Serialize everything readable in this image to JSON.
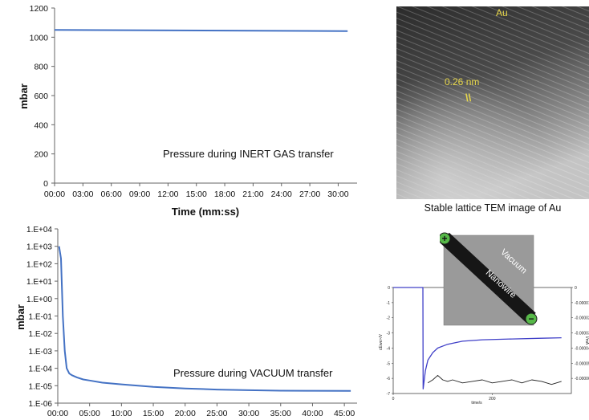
{
  "chart_data": [
    {
      "type": "line",
      "annotation": "Pressure during INERT GAS transfer",
      "xlabel": "Time (mm:ss)",
      "ylabel": "mbar",
      "x_tick_labels": [
        "00:00",
        "03:00",
        "06:00",
        "09:00",
        "12:00",
        "15:00",
        "18:00",
        "21:00",
        "24:00",
        "27:00",
        "30:00"
      ],
      "y_tick_labels": [
        "0",
        "200",
        "400",
        "600",
        "800",
        "1000",
        "1200"
      ],
      "ylim": [
        0,
        1200
      ],
      "xlim_minutes": [
        0,
        32
      ],
      "grid": false,
      "series": [
        {
          "color": "#4472c4",
          "x": [
            0,
            31
          ],
          "y": [
            1050,
            1042
          ]
        }
      ]
    },
    {
      "type": "line",
      "annotation": "Pressure during VACUUM transfer",
      "xlabel": "",
      "ylabel": "mbar",
      "log_scale_y": true,
      "x_tick_labels": [
        "00:00",
        "05:00",
        "10:00",
        "15:00",
        "20:00",
        "25:00",
        "30:00",
        "35:00",
        "40:00",
        "45:00"
      ],
      "y_tick_labels": [
        "1.E-06",
        "1.E-05",
        "1.E-04",
        "1.E-03",
        "1.E-02",
        "1.E-01",
        "1.E+00",
        "1.E+01",
        "1.E+02",
        "1.E+03",
        "1.E+04"
      ],
      "ylim": [
        1e-06,
        10000
      ],
      "xlim_minutes": [
        0,
        47
      ],
      "grid": false,
      "series": [
        {
          "color": "#4472c4",
          "x": [
            0.2,
            0.5,
            0.8,
            1.1,
            1.4,
            1.8,
            2.2,
            3,
            4,
            5,
            7,
            10,
            15,
            20,
            25,
            30,
            35,
            40,
            46
          ],
          "y": [
            1000,
            200,
            0.1,
            0.001,
            0.0001,
            5e-05,
            4e-05,
            3e-05,
            2.3e-05,
            2e-05,
            1.5e-05,
            1.2e-05,
            8.5e-06,
            7e-06,
            6e-06,
            5.5e-06,
            5.2e-06,
            5.1e-06,
            5e-06
          ]
        }
      ]
    },
    {
      "type": "line",
      "xlabel": "time/s",
      "ylabel": "cEwe>/V",
      "ylabel_right": "I/mA",
      "x_tick_labels": [
        "0",
        "200"
      ],
      "y_tick_labels": [
        "0",
        "-1",
        "-2",
        "-3",
        "-4",
        "-5",
        "-6",
        "-7"
      ],
      "y2_tick_labels": [
        "0",
        "-0.00001",
        "-0.00002",
        "-0.00003",
        "-0.00004",
        "-0.00005",
        "-0.00006"
      ],
      "xlim": [
        0,
        360
      ],
      "ylim": [
        -7,
        0
      ],
      "y2lim": [
        -7e-05,
        0
      ],
      "grid": false,
      "series": [
        {
          "axis": "left",
          "color": "#4040c8",
          "x": [
            0,
            60,
            60.5,
            65,
            70,
            80,
            90,
            110,
            140,
            180,
            240,
            300,
            340
          ],
          "y": [
            0,
            0,
            -6.7,
            -5.5,
            -4.8,
            -4.3,
            -4.0,
            -3.75,
            -3.55,
            -3.45,
            -3.4,
            -3.35,
            -3.32
          ]
        },
        {
          "axis": "right",
          "color": "#222222",
          "x": [
            70,
            80,
            90,
            100,
            110,
            120,
            140,
            160,
            180,
            200,
            220,
            240,
            260,
            280,
            300,
            320,
            340
          ],
          "y": [
            -6.3e-05,
            -6.1e-05,
            -5.8e-05,
            -6.1e-05,
            -6.2e-05,
            -6.1e-05,
            -6.3e-05,
            -6.2e-05,
            -6.1e-05,
            -6.3e-05,
            -6.2e-05,
            -6.1e-05,
            -6.3e-05,
            -6.1e-05,
            -6.2e-05,
            -6.4e-05,
            -6.2e-05
          ]
        }
      ]
    }
  ],
  "tem": {
    "element_label": "Au",
    "spacing_label": "0.26 nm",
    "spacing_marker": "\\\\",
    "caption": "Stable lattice TEM image of Au"
  },
  "inset": {
    "plus_sign": "+",
    "minus_sign": "−",
    "vacuum_label": "Vacuum",
    "nanowire_label": "Nanowire"
  },
  "colors": {
    "series_blue": "#4472c4",
    "tem_label_yellow": "#e8d84a",
    "electrode_green": "#56b848"
  }
}
